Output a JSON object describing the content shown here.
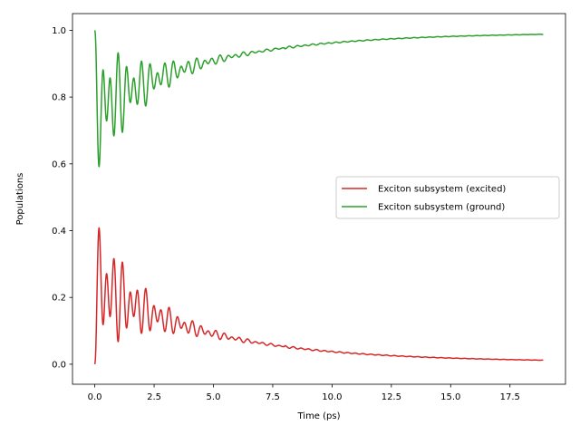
{
  "chart_data": {
    "type": "line",
    "title": "",
    "xlabel": "Time (ps)",
    "ylabel": "Populations",
    "xlim": [
      -0.94,
      19.84
    ],
    "ylim": [
      -0.06,
      1.05
    ],
    "x_ticks": [
      0.0,
      2.5,
      5.0,
      7.5,
      10.0,
      12.5,
      15.0,
      17.5
    ],
    "x_tick_labels": [
      "0.0",
      "2.5",
      "5.0",
      "7.5",
      "10.0",
      "12.5",
      "15.0",
      "17.5"
    ],
    "y_ticks": [
      0.0,
      0.2,
      0.4,
      0.6,
      0.8,
      1.0
    ],
    "y_tick_labels": [
      "0.0",
      "0.2",
      "0.4",
      "0.6",
      "0.8",
      "1.0"
    ],
    "grid": false,
    "legend_position": "center-right",
    "series": [
      {
        "name": "Exciton subsystem (excited)",
        "color": "#d62728",
        "model": {
          "x_start": 0.0,
          "x_end": 18.9,
          "dt": 0.01,
          "equilibrium": 0.0,
          "drift_amplitude": 0.24,
          "drift_decay_time": 4.5,
          "osc_amplitude": 0.23,
          "osc_decay_time": 1.8,
          "osc_period": 0.33,
          "second_period": 0.48,
          "second_weight": 0.35
        },
        "peaks": [
          {
            "x": 0.2,
            "y": 0.46
          },
          {
            "x": 0.5,
            "y": 0.39
          },
          {
            "x": 0.85,
            "y": 0.33
          },
          {
            "x": 1.5,
            "y": 0.27
          },
          {
            "x": 2.2,
            "y": 0.2
          },
          {
            "x": 3.5,
            "y": 0.14
          },
          {
            "x": 5.0,
            "y": 0.09
          },
          {
            "x": 7.5,
            "y": 0.055
          },
          {
            "x": 10.0,
            "y": 0.035
          },
          {
            "x": 18.9,
            "y": 0.011
          }
        ]
      },
      {
        "name": "Exciton subsystem (ground)",
        "color": "#2ca02c",
        "model": {
          "mirror_of": "Exciton subsystem (excited)",
          "total": 1.0
        },
        "peaks": [
          {
            "x": 0.0,
            "y": 1.0
          },
          {
            "x": 0.2,
            "y": 0.54
          },
          {
            "x": 0.5,
            "y": 0.61
          },
          {
            "x": 0.85,
            "y": 0.67
          },
          {
            "x": 1.5,
            "y": 0.73
          },
          {
            "x": 2.2,
            "y": 0.8
          },
          {
            "x": 3.5,
            "y": 0.86
          },
          {
            "x": 5.0,
            "y": 0.91
          },
          {
            "x": 10.0,
            "y": 0.965
          },
          {
            "x": 18.9,
            "y": 0.989
          }
        ]
      }
    ]
  }
}
